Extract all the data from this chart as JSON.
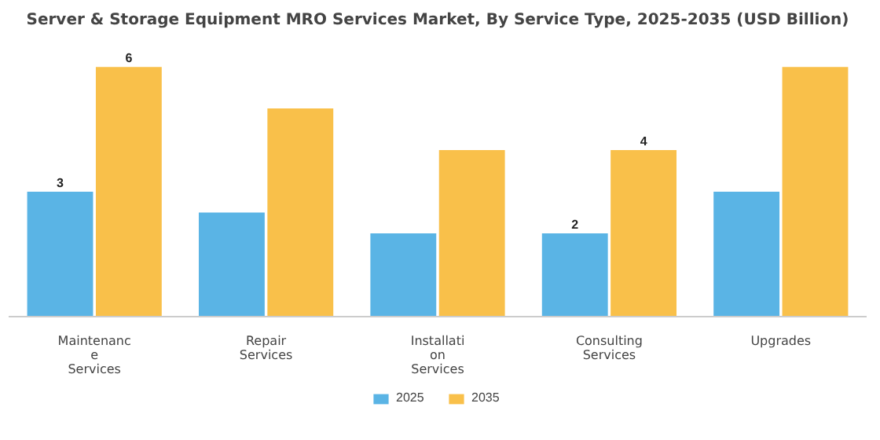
{
  "chart_data": {
    "type": "bar",
    "title": "Server & Storage Equipment MRO Services Market, By Service Type, 2025-2035 (USD Billion)",
    "categories": [
      "Maintenance Services",
      "Repair Services",
      "Installation Services",
      "Consulting Services",
      "Upgrades"
    ],
    "series": [
      {
        "name": "2025",
        "color": "#5ab4e5",
        "values": [
          3,
          2.5,
          2,
          2,
          3
        ],
        "value_labels": [
          "3",
          null,
          null,
          "2",
          null
        ]
      },
      {
        "name": "2035",
        "color": "#f9c04a",
        "values": [
          6,
          5,
          4,
          4,
          6
        ],
        "value_labels": [
          "6",
          null,
          null,
          "4",
          null
        ]
      }
    ],
    "legend": "bottom"
  }
}
